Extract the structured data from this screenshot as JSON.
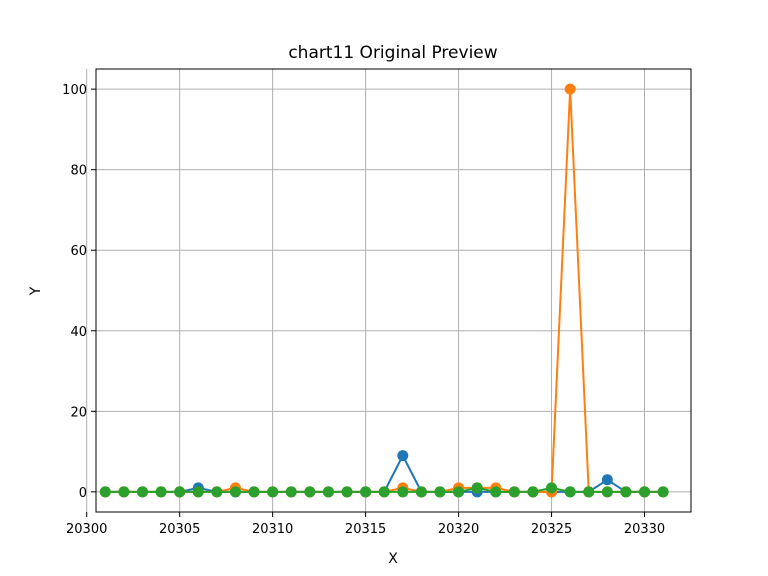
{
  "chart_data": {
    "type": "line",
    "title": "chart11 Original Preview",
    "xlabel": "X",
    "ylabel": "Y",
    "xlim": [
      20300.5,
      20332.5
    ],
    "ylim": [
      -5,
      105
    ],
    "x_ticks": [
      20300,
      20305,
      20310,
      20315,
      20320,
      20325,
      20330
    ],
    "y_ticks": [
      0,
      20,
      40,
      60,
      80,
      100
    ],
    "grid": true,
    "x": [
      20301,
      20302,
      20303,
      20304,
      20305,
      20306,
      20307,
      20308,
      20309,
      20310,
      20311,
      20312,
      20313,
      20314,
      20315,
      20316,
      20317,
      20318,
      20319,
      20320,
      20321,
      20322,
      20323,
      20324,
      20325,
      20326,
      20327,
      20328,
      20329,
      20330,
      20331
    ],
    "series": [
      {
        "color": "#1f77b4",
        "values": [
          0,
          0,
          0,
          0,
          0,
          1,
          0,
          0,
          0,
          0,
          0,
          0,
          0,
          0,
          0,
          0,
          9,
          0,
          0,
          0,
          0,
          0,
          0,
          0,
          0,
          0,
          0,
          3,
          0,
          0,
          0
        ]
      },
      {
        "color": "#ff7f0e",
        "values": [
          0,
          0,
          0,
          0,
          0,
          0,
          0,
          1,
          0,
          0,
          0,
          0,
          0,
          0,
          0,
          0,
          1,
          0,
          0,
          1,
          1,
          1,
          0,
          0,
          0,
          100,
          0,
          0,
          0,
          0,
          0
        ]
      },
      {
        "color": "#2ca02c",
        "values": [
          0,
          0,
          0,
          0,
          0,
          0,
          0,
          0,
          0,
          0,
          0,
          0,
          0,
          0,
          0,
          0,
          0,
          0,
          0,
          0,
          1,
          0,
          0,
          0,
          1,
          0,
          0,
          0,
          0,
          0,
          0
        ]
      }
    ]
  }
}
